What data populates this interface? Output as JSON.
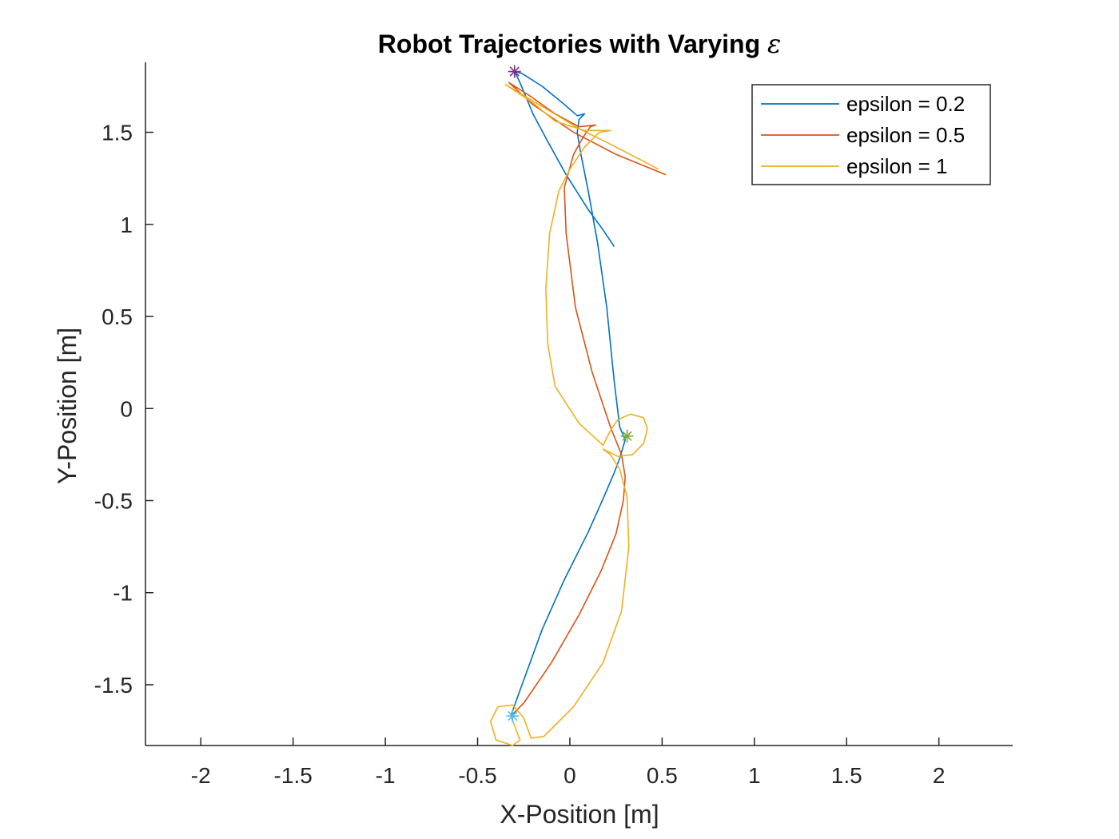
{
  "chart_data": {
    "type": "line",
    "title": "Robot Trajectories with Varying",
    "title_symbol": "ε",
    "xlabel": "X-Position [m]",
    "ylabel": "Y-Position [m]",
    "xlim": [
      -2.3,
      2.4
    ],
    "ylim": [
      -1.83,
      1.88
    ],
    "xticks": [
      -2,
      -1.5,
      -1,
      -0.5,
      0,
      0.5,
      1,
      1.5,
      2
    ],
    "xtick_labels": [
      "-2",
      "-1.5",
      "-1",
      "-0.5",
      "0",
      "0.5",
      "1",
      "1.5",
      "2"
    ],
    "yticks": [
      -1.5,
      -1,
      -0.5,
      0,
      0.5,
      1,
      1.5
    ],
    "ytick_labels": [
      "-1.5",
      "-1",
      "-0.5",
      "0",
      "0.5",
      "1",
      "1.5"
    ],
    "grid": false,
    "legend_position": "top-right",
    "series": [
      {
        "name": "epsilon = 0.2",
        "color": "#0072BD",
        "points": [
          [
            -0.32,
            -1.67
          ],
          [
            -0.27,
            -1.53
          ],
          [
            -0.15,
            -1.2
          ],
          [
            -0.03,
            -0.93
          ],
          [
            0.1,
            -0.67
          ],
          [
            0.18,
            -0.49
          ],
          [
            0.24,
            -0.35
          ],
          [
            0.27,
            -0.27
          ],
          [
            0.3,
            -0.17
          ],
          [
            0.27,
            -0.1
          ],
          [
            0.24,
            0.15
          ],
          [
            0.2,
            0.55
          ],
          [
            0.15,
            0.9
          ],
          [
            0.1,
            1.18
          ],
          [
            0.06,
            1.38
          ],
          [
            0.04,
            1.5
          ],
          [
            0.05,
            1.57
          ],
          [
            0.08,
            1.6
          ],
          [
            0.04,
            1.59
          ],
          [
            -0.04,
            1.66
          ],
          [
            -0.15,
            1.75
          ],
          [
            -0.26,
            1.82
          ],
          [
            -0.3,
            1.83
          ],
          [
            -0.27,
            1.77
          ],
          [
            -0.2,
            1.6
          ],
          [
            -0.12,
            1.45
          ],
          [
            -0.02,
            1.27
          ],
          [
            0.1,
            1.08
          ],
          [
            0.18,
            0.97
          ],
          [
            0.24,
            0.88
          ]
        ]
      },
      {
        "name": "epsilon = 0.5",
        "color": "#D95319",
        "points": [
          [
            -0.32,
            -1.67
          ],
          [
            -0.25,
            -1.6
          ],
          [
            -0.1,
            -1.38
          ],
          [
            0.05,
            -1.12
          ],
          [
            0.17,
            -0.88
          ],
          [
            0.25,
            -0.68
          ],
          [
            0.29,
            -0.5
          ],
          [
            0.3,
            -0.37
          ],
          [
            0.28,
            -0.25
          ],
          [
            0.22,
            -0.1
          ],
          [
            0.12,
            0.2
          ],
          [
            0.03,
            0.55
          ],
          [
            -0.02,
            0.95
          ],
          [
            -0.03,
            1.2
          ],
          [
            0.02,
            1.38
          ],
          [
            0.07,
            1.47
          ],
          [
            0.11,
            1.53
          ],
          [
            0.14,
            1.54
          ],
          [
            0.05,
            1.53
          ],
          [
            -0.08,
            1.6
          ],
          [
            -0.22,
            1.7
          ],
          [
            -0.33,
            1.77
          ],
          [
            -0.2,
            1.65
          ],
          [
            0.02,
            1.5
          ],
          [
            0.25,
            1.38
          ],
          [
            0.52,
            1.27
          ]
        ]
      },
      {
        "name": "epsilon = 1",
        "color": "#EDB120",
        "points": [
          [
            -0.32,
            -1.67
          ],
          [
            -0.27,
            -1.8
          ],
          [
            -0.31,
            -1.83
          ],
          [
            -0.4,
            -1.8
          ],
          [
            -0.43,
            -1.7
          ],
          [
            -0.39,
            -1.62
          ],
          [
            -0.31,
            -1.61
          ],
          [
            -0.25,
            -1.68
          ],
          [
            -0.21,
            -1.79
          ],
          [
            -0.14,
            -1.78
          ],
          [
            0.02,
            -1.62
          ],
          [
            0.18,
            -1.38
          ],
          [
            0.28,
            -1.1
          ],
          [
            0.32,
            -0.75
          ],
          [
            0.31,
            -0.48
          ],
          [
            0.27,
            -0.33
          ],
          [
            0.22,
            -0.25
          ],
          [
            0.18,
            -0.22
          ],
          [
            0.26,
            -0.26
          ],
          [
            0.34,
            -0.25
          ],
          [
            0.4,
            -0.19
          ],
          [
            0.42,
            -0.11
          ],
          [
            0.4,
            -0.05
          ],
          [
            0.33,
            -0.03
          ],
          [
            0.26,
            -0.06
          ],
          [
            0.22,
            -0.12
          ],
          [
            0.18,
            -0.2
          ],
          [
            0.05,
            -0.08
          ],
          [
            -0.08,
            0.12
          ],
          [
            -0.12,
            0.35
          ],
          [
            -0.13,
            0.65
          ],
          [
            -0.11,
            0.95
          ],
          [
            -0.06,
            1.18
          ],
          [
            0.0,
            1.3
          ],
          [
            0.08,
            1.42
          ],
          [
            0.16,
            1.5
          ],
          [
            0.22,
            1.51
          ],
          [
            0.08,
            1.51
          ],
          [
            -0.08,
            1.56
          ],
          [
            -0.2,
            1.66
          ],
          [
            -0.35,
            1.76
          ],
          [
            -0.2,
            1.67
          ],
          [
            0.05,
            1.52
          ],
          [
            0.25,
            1.42
          ],
          [
            0.48,
            1.3
          ]
        ]
      }
    ],
    "markers": [
      {
        "color": "#7E2F8E",
        "x": -0.3,
        "y": 1.83
      },
      {
        "color": "#77AC30",
        "x": 0.31,
        "y": -0.15
      },
      {
        "color": "#4DBEEE",
        "x": -0.31,
        "y": -1.67
      }
    ]
  }
}
